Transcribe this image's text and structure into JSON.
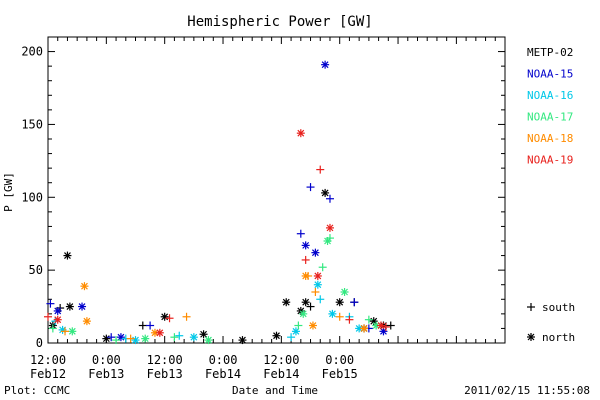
{
  "chart_data": {
    "type": "scatter",
    "title": "Hemispheric Power [GW]",
    "ylabel": "P [GW]",
    "xlabel": "Date and Time",
    "ylim": [
      0,
      210
    ],
    "yticks": [
      0,
      50,
      100,
      150,
      200
    ],
    "xlim": [
      "2011-02-12 12:00",
      "2011-02-16 10:00"
    ],
    "xticks": [
      {
        "x": "2011-02-12 12:00",
        "line1": "12:00",
        "line2": "Feb12"
      },
      {
        "x": "2011-02-13 00:00",
        "line1": "0:00",
        "line2": "Feb13"
      },
      {
        "x": "2011-02-13 12:00",
        "line1": "12:00",
        "line2": "Feb13"
      },
      {
        "x": "2011-02-14 00:00",
        "line1": "0:00",
        "line2": "Feb14"
      },
      {
        "x": "2011-02-14 12:00",
        "line1": "12:00",
        "line2": "Feb14"
      },
      {
        "x": "2011-02-15 00:00",
        "line1": "0:00",
        "line2": "Feb15"
      }
    ],
    "markers": [
      {
        "symbol": "+",
        "label": "south"
      },
      {
        "symbol": "*",
        "label": "north"
      }
    ],
    "series": [
      {
        "name": "METP-02",
        "color": "#000000",
        "south": [
          [
            "2011-02-12 14:30",
            24
          ],
          [
            "2011-02-13 07:30",
            12
          ],
          [
            "2011-02-14 18:00",
            25
          ],
          [
            "2011-02-15 03:00",
            28
          ],
          [
            "2011-02-15 10:30",
            12
          ]
        ],
        "north": [
          [
            "2011-02-12 13:00",
            12
          ],
          [
            "2011-02-12 16:00",
            60
          ],
          [
            "2011-02-12 16:30",
            25
          ],
          [
            "2011-02-13 00:00",
            3
          ],
          [
            "2011-02-13 12:00",
            18
          ],
          [
            "2011-02-13 20:00",
            6
          ],
          [
            "2011-02-14 04:00",
            2
          ],
          [
            "2011-02-14 11:00",
            5
          ],
          [
            "2011-02-14 13:00",
            28
          ],
          [
            "2011-02-14 16:00",
            22
          ],
          [
            "2011-02-14 17:00",
            28
          ],
          [
            "2011-02-14 21:00",
            103
          ],
          [
            "2011-02-15 00:00",
            28
          ],
          [
            "2011-02-15 05:00",
            10
          ],
          [
            "2011-02-15 07:00",
            15
          ],
          [
            "2011-02-15 09:00",
            12
          ]
        ]
      },
      {
        "name": "NOAA-15",
        "color": "#0000cc",
        "south": [
          [
            "2011-02-12 12:30",
            27
          ],
          [
            "2011-02-13 01:00",
            4
          ],
          [
            "2011-02-13 09:00",
            12
          ],
          [
            "2011-02-14 16:00",
            75
          ],
          [
            "2011-02-14 18:00",
            107
          ],
          [
            "2011-02-14 22:00",
            99
          ],
          [
            "2011-02-15 03:00",
            28
          ],
          [
            "2011-02-15 06:00",
            10
          ]
        ],
        "north": [
          [
            "2011-02-12 14:00",
            22
          ],
          [
            "2011-02-12 19:00",
            25
          ],
          [
            "2011-02-13 03:00",
            4
          ],
          [
            "2011-02-14 17:00",
            67
          ],
          [
            "2011-02-14 19:00",
            62
          ],
          [
            "2011-02-14 21:00",
            191
          ],
          [
            "2011-02-15 09:00",
            8
          ]
        ]
      },
      {
        "name": "NOAA-16",
        "color": "#00c8e8",
        "south": [
          [
            "2011-02-12 13:30",
            15
          ],
          [
            "2011-02-13 04:00",
            3
          ],
          [
            "2011-02-13 15:00",
            5
          ],
          [
            "2011-02-14 14:00",
            4
          ],
          [
            "2011-02-14 20:00",
            30
          ],
          [
            "2011-02-15 02:00",
            18
          ]
        ],
        "north": [
          [
            "2011-02-12 15:00",
            9
          ],
          [
            "2011-02-13 06:00",
            2
          ],
          [
            "2011-02-13 18:00",
            4
          ],
          [
            "2011-02-14 15:00",
            8
          ],
          [
            "2011-02-14 19:30",
            40
          ],
          [
            "2011-02-14 22:30",
            20
          ],
          [
            "2011-02-15 04:00",
            10
          ]
        ]
      },
      {
        "name": "NOAA-17",
        "color": "#33e880",
        "south": [
          [
            "2011-02-12 13:00",
            10
          ],
          [
            "2011-02-13 02:00",
            2
          ],
          [
            "2011-02-13 14:00",
            4
          ],
          [
            "2011-02-14 15:30",
            12
          ],
          [
            "2011-02-14 20:30",
            52
          ],
          [
            "2011-02-14 22:00",
            72
          ],
          [
            "2011-02-15 06:00",
            16
          ]
        ],
        "north": [
          [
            "2011-02-12 17:00",
            8
          ],
          [
            "2011-02-13 08:00",
            3
          ],
          [
            "2011-02-13 21:00",
            2
          ],
          [
            "2011-02-14 16:30",
            20
          ],
          [
            "2011-02-14 21:30",
            70
          ],
          [
            "2011-02-15 01:00",
            35
          ],
          [
            "2011-02-15 07:30",
            12
          ]
        ]
      },
      {
        "name": "NOAA-18",
        "color": "#ff8c00",
        "south": [
          [
            "2011-02-12 15:30",
            8
          ],
          [
            "2011-02-13 05:00",
            3
          ],
          [
            "2011-02-13 16:30",
            18
          ],
          [
            "2011-02-14 17:30",
            46
          ],
          [
            "2011-02-14 19:00",
            35
          ],
          [
            "2011-02-15 00:00",
            18
          ]
        ],
        "north": [
          [
            "2011-02-12 19:30",
            39
          ],
          [
            "2011-02-12 20:00",
            15
          ],
          [
            "2011-02-13 10:00",
            7
          ],
          [
            "2011-02-14 17:00",
            46
          ],
          [
            "2011-02-14 18:30",
            12
          ],
          [
            "2011-02-15 05:00",
            10
          ]
        ]
      },
      {
        "name": "NOAA-19",
        "color": "#e8201c",
        "south": [
          [
            "2011-02-12 12:00",
            18
          ],
          [
            "2011-02-13 13:00",
            17
          ],
          [
            "2011-02-14 17:00",
            57
          ],
          [
            "2011-02-14 20:00",
            119
          ],
          [
            "2011-02-15 02:00",
            16
          ],
          [
            "2011-02-15 09:30",
            11
          ]
        ],
        "north": [
          [
            "2011-02-12 14:00",
            16
          ],
          [
            "2011-02-13 11:00",
            7
          ],
          [
            "2011-02-14 16:00",
            144
          ],
          [
            "2011-02-14 19:30",
            46
          ],
          [
            "2011-02-14 22:00",
            79
          ],
          [
            "2011-02-15 08:30",
            12
          ]
        ]
      }
    ]
  },
  "footer": {
    "left": "Plot: CCMC",
    "right": "2011/02/15 11:55:08"
  }
}
